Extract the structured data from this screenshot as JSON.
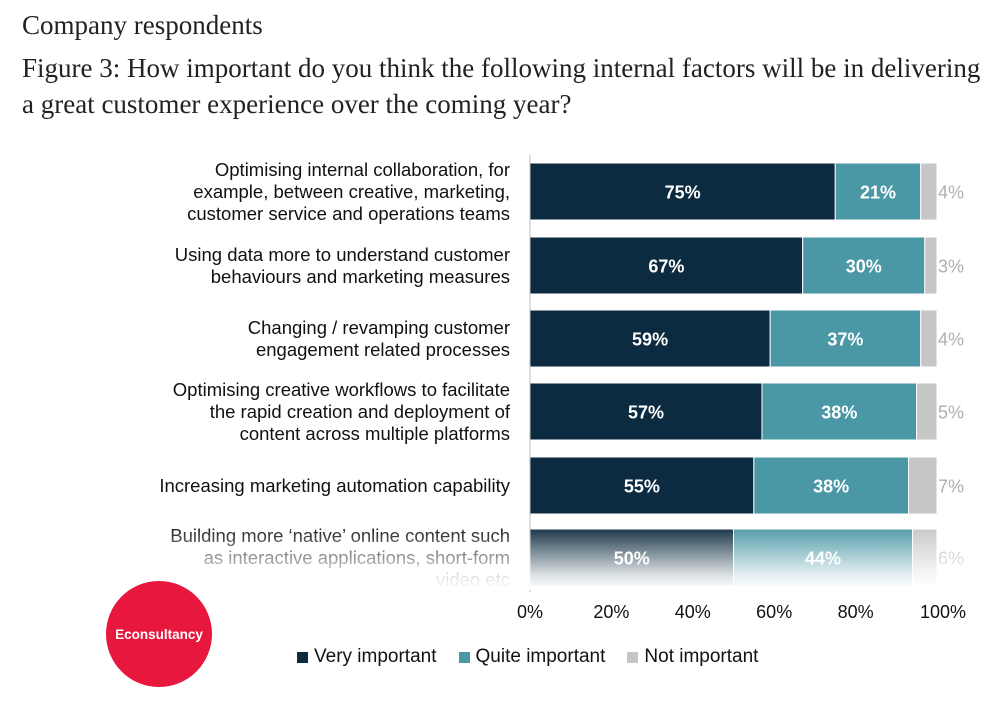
{
  "header": {
    "subtitle": "Company respondents",
    "title": "Figure 3: How important do you think the following internal factors will be in delivering a great customer experience over the coming year?"
  },
  "logo": {
    "text": "Econsultancy"
  },
  "colors": {
    "very": "#0d2b40",
    "quite": "#4a97a6",
    "not": "#c6c6c6",
    "logo": "#e8173d"
  },
  "chart_data": {
    "type": "bar",
    "orientation": "horizontal",
    "stacked": true,
    "title": "Figure 3: How important do you think the following internal factors will be in delivering a great customer experience over the coming year?",
    "categories": [
      [
        "Optimising internal collaboration, for",
        "example, between creative, marketing,",
        "customer service and operations teams"
      ],
      [
        "Using data more to understand customer",
        "behaviours and marketing measures"
      ],
      [
        "Changing / revamping customer",
        "engagement related processes"
      ],
      [
        "Optimising creative workflows to facilitate",
        "the rapid creation and deployment of",
        "content across multiple platforms"
      ],
      [
        "Increasing marketing automation capability"
      ],
      [
        "Building more ‘native’ online content such",
        "as interactive applications, short-form",
        "video etc"
      ]
    ],
    "series": [
      {
        "name": "Very important",
        "values": [
          75,
          67,
          59,
          57,
          55,
          50
        ],
        "labels": [
          "75%",
          "67%",
          "59%",
          "57%",
          "55%",
          "50%"
        ]
      },
      {
        "name": "Quite important",
        "values": [
          21,
          30,
          37,
          38,
          38,
          44
        ],
        "labels": [
          "21%",
          "30%",
          "37%",
          "38%",
          "38%",
          "44%"
        ]
      },
      {
        "name": "Not important",
        "values": [
          4,
          3,
          4,
          5,
          7,
          6
        ],
        "labels": [
          "4%",
          "3%",
          "4%",
          "5%",
          "7%",
          "6%"
        ]
      }
    ],
    "xlim": [
      0,
      100
    ],
    "xticks": [
      "0%",
      "20%",
      "40%",
      "60%",
      "80%",
      "100%"
    ],
    "legend": "bottom"
  }
}
